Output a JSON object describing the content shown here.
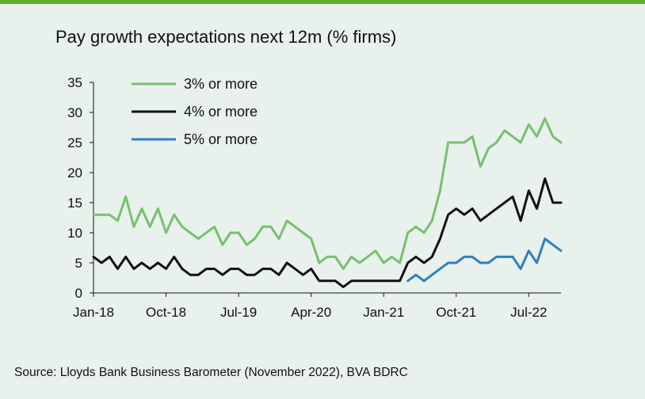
{
  "title": "Pay growth expectations next 12m (% firms)",
  "source": "Source: Lloyds Bank Business Barometer (November 2022), BVA BDRC",
  "colors": {
    "background": "#e8f1ec",
    "top_bar": "#5fae2e"
  },
  "chart_data": {
    "type": "line",
    "title": "Pay growth expectations next 12m (% firms)",
    "xlabel": "",
    "ylabel": "",
    "ylim": [
      0,
      35
    ],
    "yticks": [
      0,
      5,
      10,
      15,
      20,
      25,
      30,
      35
    ],
    "grid": false,
    "legend_position": "top-left",
    "x_tick_labels": [
      "Jan-18",
      "Oct-18",
      "Jul-19",
      "Apr-20",
      "Jan-21",
      "Oct-21",
      "Jul-22"
    ],
    "x": [
      "Jan-18",
      "Feb-18",
      "Mar-18",
      "Apr-18",
      "May-18",
      "Jun-18",
      "Jul-18",
      "Aug-18",
      "Sep-18",
      "Oct-18",
      "Nov-18",
      "Dec-18",
      "Jan-19",
      "Feb-19",
      "Mar-19",
      "Apr-19",
      "May-19",
      "Jun-19",
      "Jul-19",
      "Aug-19",
      "Sep-19",
      "Oct-19",
      "Nov-19",
      "Dec-19",
      "Jan-20",
      "Feb-20",
      "Mar-20",
      "Apr-20",
      "May-20",
      "Jun-20",
      "Jul-20",
      "Aug-20",
      "Sep-20",
      "Oct-20",
      "Nov-20",
      "Dec-20",
      "Jan-21",
      "Feb-21",
      "Mar-21",
      "Apr-21",
      "May-21",
      "Jun-21",
      "Jul-21",
      "Aug-21",
      "Sep-21",
      "Oct-21",
      "Nov-21",
      "Dec-21",
      "Jan-22",
      "Feb-22",
      "Mar-22",
      "Apr-22",
      "May-22",
      "Jun-22",
      "Jul-22",
      "Aug-22",
      "Sep-22",
      "Oct-22",
      "Nov-22"
    ],
    "series": [
      {
        "name": "3% or more",
        "color": "#77c06f",
        "values": [
          13,
          13,
          13,
          12,
          16,
          11,
          14,
          11,
          14,
          10,
          13,
          11,
          10,
          9,
          10,
          11,
          8,
          10,
          10,
          8,
          9,
          11,
          11,
          9,
          12,
          11,
          10,
          9,
          5,
          6,
          6,
          4,
          6,
          5,
          6,
          7,
          5,
          6,
          5,
          10,
          11,
          10,
          12,
          17,
          25,
          25,
          25,
          26,
          21,
          24,
          25,
          27,
          26,
          25,
          28,
          26,
          29,
          26,
          25
        ]
      },
      {
        "name": "4% or more",
        "color": "#111111",
        "values": [
          6,
          5,
          6,
          4,
          6,
          4,
          5,
          4,
          5,
          4,
          6,
          4,
          3,
          3,
          4,
          4,
          3,
          4,
          4,
          3,
          3,
          4,
          4,
          3,
          5,
          4,
          3,
          4,
          2,
          2,
          2,
          1,
          2,
          2,
          2,
          2,
          2,
          2,
          2,
          5,
          6,
          5,
          6,
          9,
          13,
          14,
          13,
          14,
          12,
          13,
          14,
          15,
          16,
          12,
          17,
          14,
          19,
          15,
          15
        ]
      },
      {
        "name": "5% or more",
        "color": "#2f7fc1",
        "values": [
          null,
          null,
          null,
          null,
          null,
          null,
          null,
          null,
          null,
          null,
          null,
          null,
          null,
          null,
          null,
          null,
          null,
          null,
          null,
          null,
          null,
          null,
          null,
          null,
          null,
          null,
          null,
          null,
          null,
          null,
          null,
          null,
          null,
          null,
          null,
          null,
          null,
          null,
          null,
          2,
          3,
          2,
          3,
          4,
          5,
          5,
          6,
          6,
          5,
          5,
          6,
          6,
          6,
          4,
          7,
          5,
          9,
          8,
          7
        ]
      }
    ]
  }
}
